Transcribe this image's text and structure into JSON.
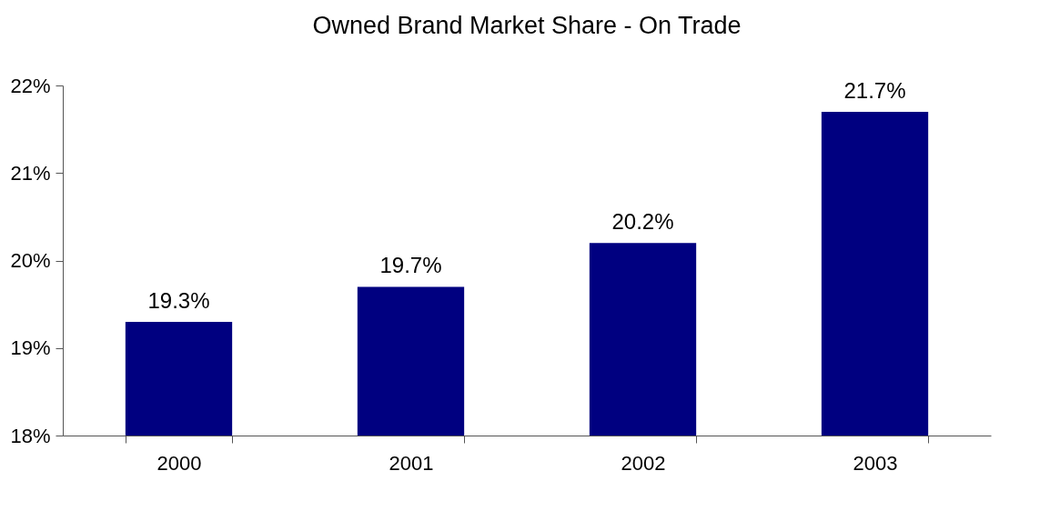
{
  "chart_data": {
    "type": "bar",
    "title": "Owned Brand Market Share - On Trade",
    "categories": [
      "2000",
      "2001",
      "2002",
      "2003"
    ],
    "values": [
      19.3,
      19.7,
      20.2,
      21.7
    ],
    "value_labels": [
      "19.3%",
      "19.7%",
      "20.2%",
      "21.7%"
    ],
    "color": "#000080",
    "ylim": [
      18,
      22
    ],
    "yticks": [
      {
        "value": 18,
        "label": "18%"
      },
      {
        "value": 19,
        "label": "19%"
      },
      {
        "value": 20,
        "label": "20%"
      },
      {
        "value": 21,
        "label": "21%"
      },
      {
        "value": 22,
        "label": "22%"
      }
    ],
    "grid": false
  }
}
